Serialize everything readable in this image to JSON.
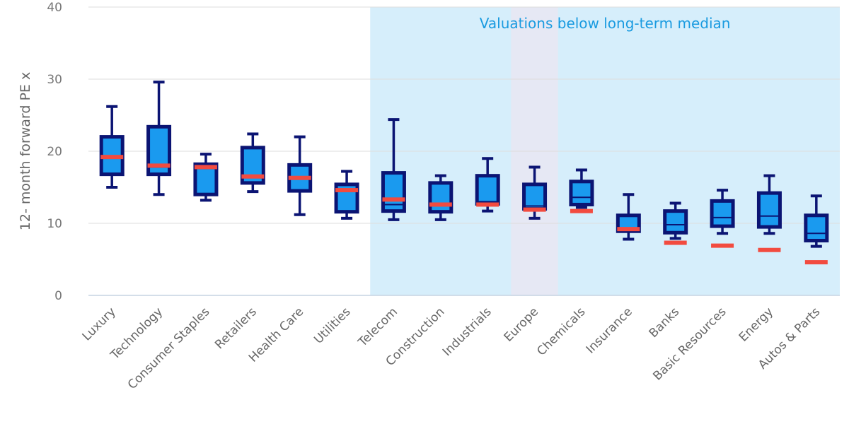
{
  "chart_data": {
    "type": "boxplot",
    "ylabel": "12- month forward PE x",
    "ylim": [
      0,
      40
    ],
    "yticks": [
      0,
      10,
      20,
      30,
      40
    ],
    "grid": true,
    "annotation": "Valuations below long-term median",
    "shaded_region": {
      "from": "Telecom",
      "to": "Autos & Parts",
      "color": "#d6eefb"
    },
    "highlight": {
      "category": "Europe",
      "color": "#e6e8f4"
    },
    "colors": {
      "box_fill": "#1a9aef",
      "box_stroke": "#0b1473",
      "current_marker": "#f24b3f",
      "grid": "#dddddd"
    },
    "categories": [
      "Luxury",
      "Technology",
      "Consumer Staples",
      "Retailers",
      "Health Care",
      "Utilities",
      "Telecom",
      "Construction",
      "Industrials",
      "Europe",
      "Chemicals",
      "Insurance",
      "Banks",
      "Basic Resources",
      "Energy",
      "Autos & Parts"
    ],
    "series": [
      {
        "category": "Luxury",
        "min": 15.0,
        "q1": 16.8,
        "median": 19.2,
        "q3": 22.0,
        "max": 26.2,
        "current": 19.2
      },
      {
        "category": "Technology",
        "min": 14.0,
        "q1": 16.8,
        "median": 17.8,
        "q3": 23.4,
        "max": 29.6,
        "current": 18.0
      },
      {
        "category": "Consumer Staples",
        "min": 13.2,
        "q1": 14.0,
        "median": 17.6,
        "q3": 18.2,
        "max": 19.6,
        "current": 17.8
      },
      {
        "category": "Retailers",
        "min": 14.4,
        "q1": 15.6,
        "median": 16.4,
        "q3": 20.5,
        "max": 22.4,
        "current": 16.5
      },
      {
        "category": "Health Care",
        "min": 11.2,
        "q1": 14.5,
        "median": 16.2,
        "q3": 18.1,
        "max": 22.0,
        "current": 16.3
      },
      {
        "category": "Utilities",
        "min": 10.7,
        "q1": 11.6,
        "median": 14.6,
        "q3": 15.4,
        "max": 17.2,
        "current": 14.6
      },
      {
        "category": "Telecom",
        "min": 10.5,
        "q1": 11.7,
        "median": 12.6,
        "q3": 17.0,
        "max": 24.4,
        "current": 13.3
      },
      {
        "category": "Construction",
        "min": 10.5,
        "q1": 11.6,
        "median": 12.6,
        "q3": 15.6,
        "max": 16.6,
        "current": 12.6
      },
      {
        "category": "Industrials",
        "min": 11.7,
        "q1": 12.7,
        "median": 13.0,
        "q3": 16.6,
        "max": 19.0,
        "current": 12.6
      },
      {
        "category": "Europe",
        "min": 10.7,
        "q1": 12.0,
        "median": 12.4,
        "q3": 15.4,
        "max": 17.8,
        "current": 11.9
      },
      {
        "category": "Chemicals",
        "min": 12.2,
        "q1": 12.6,
        "median": 13.6,
        "q3": 15.8,
        "max": 17.4,
        "current": 11.7
      },
      {
        "category": "Insurance",
        "min": 7.8,
        "q1": 8.9,
        "median": 9.2,
        "q3": 11.1,
        "max": 14.0,
        "current": 9.2
      },
      {
        "category": "Banks",
        "min": 7.9,
        "q1": 8.7,
        "median": 9.8,
        "q3": 11.7,
        "max": 12.8,
        "current": 7.3
      },
      {
        "category": "Basic Resources",
        "min": 8.6,
        "q1": 9.6,
        "median": 10.8,
        "q3": 13.1,
        "max": 14.6,
        "current": 6.9
      },
      {
        "category": "Energy",
        "min": 8.6,
        "q1": 9.5,
        "median": 11.0,
        "q3": 14.2,
        "max": 16.6,
        "current": 6.3
      },
      {
        "category": "Autos & Parts",
        "min": 6.8,
        "q1": 7.6,
        "median": 8.6,
        "q3": 11.1,
        "max": 13.8,
        "current": 4.6
      }
    ]
  }
}
